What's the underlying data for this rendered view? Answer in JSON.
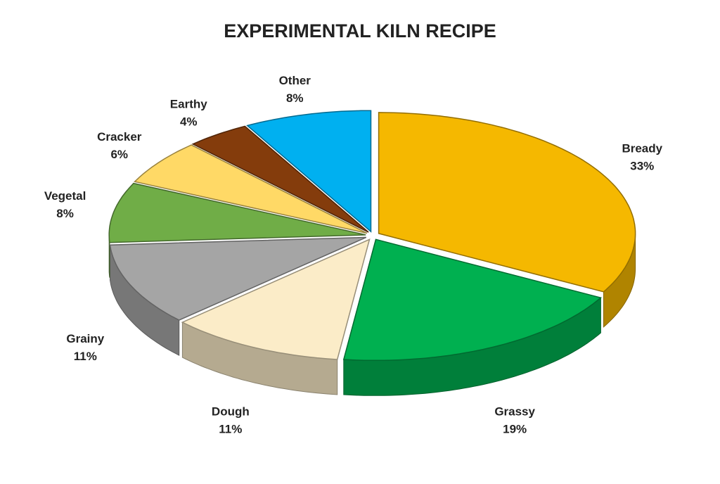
{
  "chart_data": {
    "type": "pie",
    "title": "EXPERIMENTAL KILN RECIPE",
    "categories": [
      "Bready",
      "Grassy",
      "Dough",
      "Grainy",
      "Vegetal",
      "Cracker",
      "Earthy",
      "Other"
    ],
    "values": [
      33,
      19,
      11,
      11,
      8,
      6,
      4,
      8
    ],
    "value_labels": [
      "33%",
      "19%",
      "11%",
      "11%",
      "8%",
      "6%",
      "4%",
      "8%"
    ],
    "colors": [
      "#f5b800",
      "#00b050",
      "#fbecc8",
      "#a5a5a5",
      "#70ad47",
      "#ffd966",
      "#843c0c",
      "#00b0f0"
    ]
  }
}
